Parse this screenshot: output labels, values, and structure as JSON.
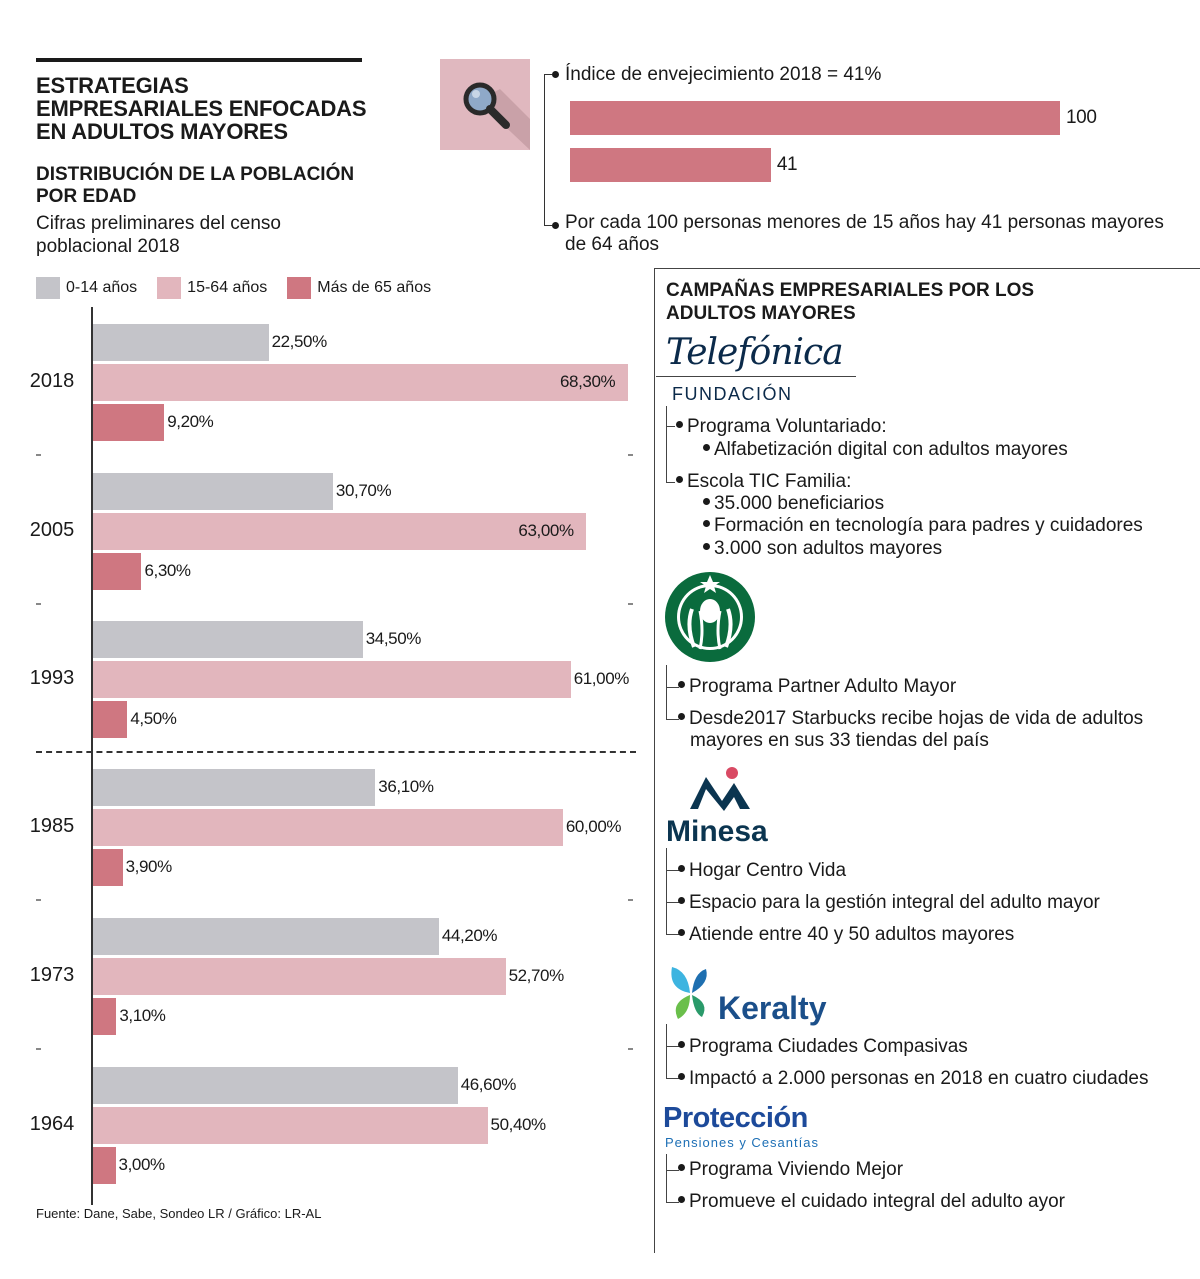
{
  "header": {
    "main_title": "ESTRATEGIAS EMPRESARIALES ENFOCADAS EN ADULTOS MAYORES",
    "subtitle": "DISTRIBUCIÓN DE LA POBLACIÓN POR EDAD",
    "note": "Cifras preliminares del censo poblacional 2018"
  },
  "colors": {
    "age_0_14": "#c4c4c9",
    "age_15_64": "#e2b6bd",
    "age_65_plus": "#cf7781",
    "index_bar": "#cf7781",
    "icon_box": "#e0b8bf"
  },
  "chart_data": {
    "type": "bar",
    "orientation": "horizontal",
    "categories": [
      "2018",
      "2005",
      "1993",
      "1985",
      "1973",
      "1964"
    ],
    "series": [
      {
        "name": "0-14 años",
        "values": [
          22.5,
          30.7,
          34.5,
          36.1,
          44.2,
          46.6
        ],
        "labels": [
          "22,50%",
          "30,70%",
          "34,50%",
          "36,10%",
          "44,20%",
          "46,60%"
        ]
      },
      {
        "name": "15-64 años",
        "values": [
          68.3,
          63.0,
          61.0,
          60.0,
          52.7,
          50.4
        ],
        "labels": [
          "68,30%",
          "63,00%",
          "61,00%",
          "60,00%",
          "52,70%",
          "50,40%"
        ]
      },
      {
        "name": "Más de 65 años",
        "values": [
          9.2,
          6.3,
          4.5,
          3.9,
          3.1,
          3.0
        ],
        "labels": [
          "9,20%",
          "6,30%",
          "4,50%",
          "3,90%",
          "3,10%",
          "3,00%"
        ]
      }
    ],
    "xlim": [
      0,
      70
    ],
    "legend_position": "top-left",
    "grid": false
  },
  "index": {
    "icon": "magnifier-icon",
    "title": "Índice de envejecimiento 2018 = 41%",
    "bars": [
      {
        "label": "100",
        "value": 100
      },
      {
        "label": "41",
        "value": 41
      }
    ],
    "note": "Por cada 100 personas menores de 15 años hay 41 personas mayores de 64 años"
  },
  "campaigns": {
    "title": "CAMPAÑAS EMPRESARIALES POR LOS ADULTOS MAYORES",
    "telefonica": {
      "logo": "Telefónica",
      "logo_sub": "FUNDACIÓN",
      "p1": "Programa Voluntariado:",
      "p1_sub": "Alfabetización digital con adultos mayores",
      "p2": "Escola TIC Familia:",
      "p2_sub1": "35.000 beneficiarios",
      "p2_sub2": "Formación en tecnología para padres y cuidadores",
      "p2_sub3": "3.000 son adultos mayores"
    },
    "starbucks": {
      "logo_icon": "starbucks-siren-icon",
      "p1": "Programa Partner Adulto Mayor",
      "p2": "Desde2017 Starbucks recibe hojas de vida de adultos mayores en sus 33 tiendas del país"
    },
    "minesa": {
      "logo": "Minesa",
      "p1": "Hogar Centro Vida",
      "p2": "Espacio para la gestión integral del adulto mayor",
      "p3": "Atiende entre 40 y 50 adultos mayores"
    },
    "keralty": {
      "logo": "Keralty",
      "p1": "Programa Ciudades Compasivas",
      "p2": "Impactó a 2.000 personas en 2018 en cuatro ciudades"
    },
    "proteccion": {
      "logo": "Protección",
      "logo_sub": "Pensiones y Cesantías",
      "p1": "Programa Viviendo Mejor",
      "p2": "Promueve el cuidado integral del adulto ayor"
    }
  },
  "source": "Fuente: Dane, Sabe, Sondeo LR / Gráfico: LR-AL"
}
